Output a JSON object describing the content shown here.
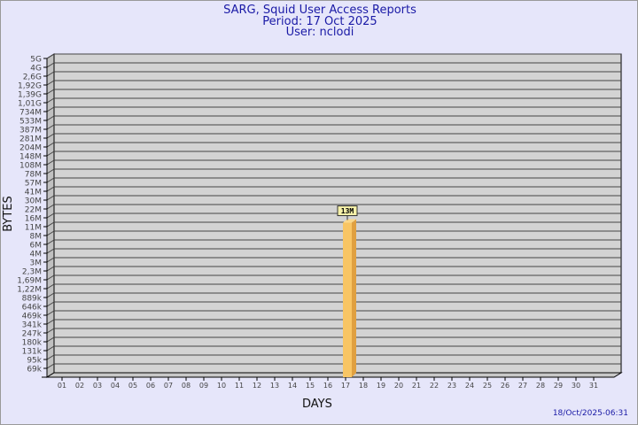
{
  "chart_data": {
    "type": "bar",
    "title": "SARG, Squid User Access Reports",
    "subtitle": [
      "Period: 17 Oct 2025",
      "User: nclodi"
    ],
    "xlabel": "DAYS",
    "ylabel": "BYTES",
    "y_scale": "log",
    "y_ticks": [
      "5G",
      "4G",
      "2,6G",
      "1,92G",
      "1,39G",
      "1,01G",
      "734M",
      "533M",
      "387M",
      "281M",
      "204M",
      "148M",
      "108M",
      "78M",
      "57M",
      "41M",
      "30M",
      "22M",
      "16M",
      "11M",
      "8M",
      "6M",
      "4M",
      "3M",
      "2,3M",
      "1,69M",
      "1,22M",
      "889k",
      "646k",
      "469k",
      "341k",
      "247k",
      "180k",
      "131k",
      "95k",
      "69k"
    ],
    "y_tick_values": [
      5000000000.0,
      4000000000.0,
      2600000000.0,
      1920000000.0,
      1390000000.0,
      1010000000.0,
      734000000.0,
      533000000.0,
      387000000.0,
      281000000.0,
      204000000.0,
      148000000.0,
      108000000.0,
      78000000.0,
      57000000.0,
      41000000.0,
      30000000.0,
      22000000.0,
      16000000.0,
      11000000.0,
      8000000.0,
      6000000.0,
      4000000.0,
      3000000.0,
      2300000.0,
      1690000.0,
      1220000.0,
      889000.0,
      646000.0,
      469000.0,
      341000.0,
      247000.0,
      180000.0,
      131000.0,
      95000.0,
      69000.0
    ],
    "categories": [
      "01",
      "02",
      "03",
      "04",
      "05",
      "06",
      "07",
      "08",
      "09",
      "10",
      "11",
      "12",
      "13",
      "14",
      "15",
      "16",
      "17",
      "18",
      "19",
      "20",
      "21",
      "22",
      "23",
      "24",
      "25",
      "26",
      "27",
      "28",
      "29",
      "30",
      "31"
    ],
    "bars": [
      {
        "day": "17",
        "value": 13000000,
        "label": "13M"
      }
    ],
    "grid": true,
    "colors": {
      "bar": "#f8c564",
      "bar_side": "#e0a040",
      "plot": "#d3d3d3",
      "title": "#1a1aa6"
    }
  },
  "footer": {
    "timestamp": "18/Oct/2025-06:31"
  }
}
